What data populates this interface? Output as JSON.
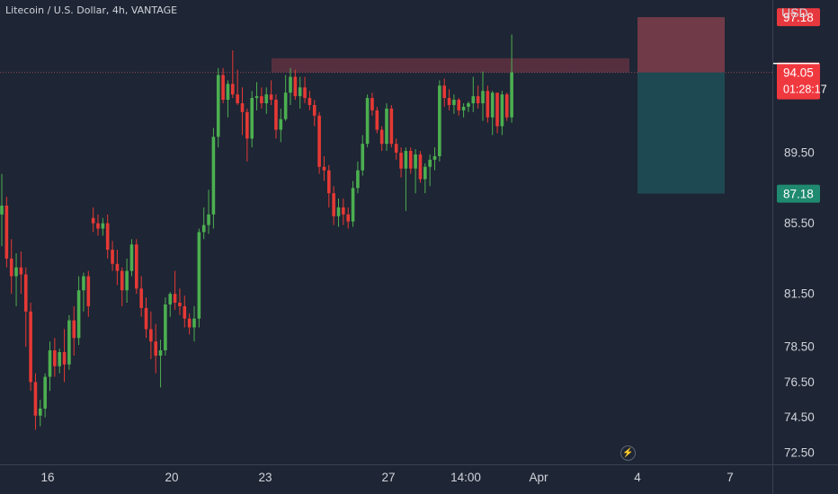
{
  "header": {
    "title": "Litecoin / U.S. Dollar, 4h, VANTAGE",
    "currency": "USD"
  },
  "icons": {
    "flash": "lightning-icon"
  },
  "colors": {
    "background": "#1e2534",
    "bull": "#4caf50",
    "bear": "#e53935",
    "stop_zone": "#7a3d4a",
    "target_zone": "#1f4e55",
    "resistance_zone": "#6a3343",
    "text": "#d1d4dc"
  },
  "chart_data": {
    "type": "candlestick",
    "symbol": "Litecoin / U.S. Dollar",
    "interval": "4h",
    "exchange": "VANTAGE",
    "y_axis": {
      "ticks": [
        "89.50",
        "85.50",
        "81.50",
        "78.50",
        "76.50",
        "74.50",
        "72.50"
      ],
      "range": [
        71.8,
        99.4
      ]
    },
    "x_axis": {
      "ticks": [
        "16",
        "20",
        "23",
        "27",
        "14:00",
        "Apr",
        "4",
        "7"
      ]
    },
    "price_labels": {
      "stop": "97.18",
      "current": "94.05",
      "countdown": "01:28:17",
      "target": "87.18"
    },
    "position": {
      "entry": 94.05,
      "stop": 97.18,
      "target": 87.18
    },
    "resistance_zone": {
      "low": 94.05,
      "high": 94.85
    },
    "candles": [
      [
        86.0,
        88.3,
        84.2,
        86.5
      ],
      [
        86.5,
        87.0,
        83.0,
        83.5
      ],
      [
        83.5,
        84.6,
        81.5,
        82.5
      ],
      [
        82.5,
        83.8,
        80.8,
        83.0
      ],
      [
        83.0,
        83.9,
        81.5,
        82.6
      ],
      [
        82.6,
        83.0,
        78.5,
        80.5
      ],
      [
        80.5,
        81.0,
        76.0,
        76.5
      ],
      [
        76.5,
        77.0,
        73.8,
        74.6
      ],
      [
        74.6,
        75.5,
        74.0,
        75.0
      ],
      [
        75.0,
        77.0,
        74.5,
        76.8
      ],
      [
        76.8,
        78.8,
        76.0,
        78.3
      ],
      [
        78.3,
        79.0,
        76.8,
        77.4
      ],
      [
        77.4,
        78.4,
        77.0,
        78.2
      ],
      [
        78.2,
        79.5,
        76.5,
        77.5
      ],
      [
        77.5,
        80.3,
        77.2,
        80.0
      ],
      [
        80.0,
        80.8,
        78.0,
        79.0
      ],
      [
        79.0,
        82.5,
        78.6,
        81.7
      ],
      [
        81.7,
        82.7,
        80.5,
        82.5
      ],
      [
        82.5,
        82.8,
        80.2,
        80.8
      ],
      [
        85.8,
        86.4,
        85.0,
        85.5
      ],
      [
        85.5,
        86.0,
        84.8,
        85.2
      ],
      [
        85.2,
        85.8,
        84.8,
        85.5
      ],
      [
        85.5,
        86.0,
        83.5,
        84.0
      ],
      [
        84.0,
        84.5,
        82.8,
        83.2
      ],
      [
        83.2,
        84.0,
        82.0,
        82.8
      ],
      [
        82.8,
        83.0,
        80.8,
        81.7
      ],
      [
        81.7,
        83.5,
        81.0,
        82.8
      ],
      [
        82.8,
        84.6,
        82.5,
        84.3
      ],
      [
        84.3,
        84.6,
        81.5,
        81.8
      ],
      [
        81.8,
        82.5,
        80.2,
        80.7
      ],
      [
        80.7,
        81.3,
        79.0,
        79.5
      ],
      [
        79.5,
        80.5,
        77.8,
        78.8
      ],
      [
        78.8,
        79.8,
        77.0,
        78.0
      ],
      [
        78.0,
        78.9,
        76.2,
        78.3
      ],
      [
        78.3,
        81.3,
        78.0,
        80.9
      ],
      [
        80.9,
        81.6,
        80.2,
        81.5
      ],
      [
        81.5,
        82.8,
        80.6,
        81.0
      ],
      [
        81.0,
        81.8,
        80.3,
        80.8
      ],
      [
        80.8,
        81.4,
        79.6,
        80.1
      ],
      [
        80.1,
        80.4,
        79.2,
        79.6
      ],
      [
        79.6,
        80.8,
        78.8,
        80.1
      ],
      [
        80.1,
        85.2,
        79.6,
        85.0
      ],
      [
        85.0,
        86.4,
        84.6,
        85.4
      ],
      [
        85.4,
        87.4,
        84.9,
        86.0
      ],
      [
        86.0,
        90.9,
        85.2,
        90.4
      ],
      [
        90.4,
        94.3,
        89.8,
        93.9
      ],
      [
        93.9,
        94.3,
        92.3,
        92.5
      ],
      [
        92.5,
        93.6,
        91.5,
        93.4
      ],
      [
        93.4,
        95.3,
        92.6,
        92.8
      ],
      [
        92.8,
        94.2,
        92.2,
        92.3
      ],
      [
        92.3,
        93.2,
        90.5,
        91.8
      ],
      [
        91.8,
        92.0,
        89.0,
        90.3
      ],
      [
        90.3,
        93.0,
        89.8,
        92.6
      ],
      [
        92.6,
        93.5,
        91.9,
        92.7
      ],
      [
        92.7,
        93.2,
        92.0,
        92.3
      ],
      [
        92.3,
        93.2,
        91.7,
        92.8
      ],
      [
        92.8,
        93.6,
        92.2,
        92.5
      ],
      [
        92.5,
        92.8,
        90.3,
        90.8
      ],
      [
        90.8,
        92.0,
        90.1,
        91.4
      ],
      [
        91.4,
        93.9,
        91.3,
        92.9
      ],
      [
        92.9,
        94.3,
        92.2,
        93.8
      ],
      [
        93.8,
        94.2,
        92.5,
        92.7
      ],
      [
        92.7,
        93.8,
        92.0,
        93.2
      ],
      [
        93.2,
        93.8,
        92.3,
        92.6
      ],
      [
        92.6,
        93.0,
        91.9,
        92.2
      ],
      [
        92.2,
        92.5,
        91.0,
        91.6
      ],
      [
        91.6,
        91.8,
        88.3,
        88.7
      ],
      [
        88.7,
        89.3,
        87.9,
        88.5
      ],
      [
        88.5,
        88.8,
        86.4,
        87.2
      ],
      [
        87.2,
        87.6,
        85.4,
        85.9
      ],
      [
        85.9,
        86.9,
        85.3,
        86.4
      ],
      [
        86.4,
        86.9,
        85.4,
        86.0
      ],
      [
        86.0,
        86.4,
        85.2,
        85.6
      ],
      [
        85.6,
        87.9,
        85.3,
        87.5
      ],
      [
        87.5,
        89.0,
        87.2,
        88.5
      ],
      [
        88.5,
        90.5,
        88.2,
        90.0
      ],
      [
        90.0,
        92.8,
        89.8,
        92.6
      ],
      [
        92.6,
        92.9,
        91.6,
        91.9
      ],
      [
        91.9,
        92.1,
        90.6,
        90.8
      ],
      [
        90.8,
        91.0,
        89.6,
        90.0
      ],
      [
        90.0,
        92.3,
        89.6,
        92.0
      ],
      [
        92.0,
        92.2,
        89.8,
        90.0
      ],
      [
        90.0,
        90.3,
        89.1,
        89.5
      ],
      [
        89.5,
        89.8,
        88.1,
        88.6
      ],
      [
        88.6,
        89.8,
        86.2,
        89.6
      ],
      [
        89.6,
        89.8,
        88.3,
        88.6
      ],
      [
        88.6,
        89.7,
        87.2,
        89.4
      ],
      [
        89.4,
        89.6,
        87.8,
        88.0
      ],
      [
        88.0,
        88.9,
        87.2,
        88.7
      ],
      [
        88.7,
        89.4,
        87.6,
        89.1
      ],
      [
        89.1,
        89.8,
        88.5,
        89.3
      ],
      [
        89.3,
        93.6,
        89.0,
        93.3
      ],
      [
        93.3,
        93.7,
        92.1,
        92.6
      ],
      [
        92.6,
        93.1,
        91.9,
        92.2
      ],
      [
        92.2,
        92.8,
        91.7,
        92.5
      ],
      [
        92.5,
        92.6,
        91.6,
        91.9
      ],
      [
        91.9,
        92.3,
        91.5,
        92.1
      ],
      [
        92.1,
        92.4,
        91.8,
        92.3
      ],
      [
        92.3,
        93.8,
        91.8,
        92.7
      ],
      [
        92.7,
        93.3,
        92.0,
        92.3
      ],
      [
        92.3,
        94.1,
        91.3,
        93.0
      ],
      [
        93.0,
        93.3,
        91.2,
        91.5
      ],
      [
        91.5,
        93.0,
        90.5,
        92.9
      ],
      [
        92.9,
        92.8,
        90.6,
        91.0
      ],
      [
        91.0,
        93.0,
        90.5,
        92.8
      ],
      [
        92.8,
        92.9,
        91.3,
        91.5
      ],
      [
        91.5,
        96.2,
        91.2,
        94.05
      ]
    ]
  }
}
